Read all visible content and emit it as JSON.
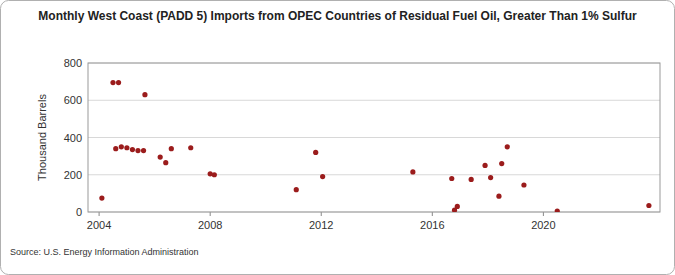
{
  "chart_data": {
    "type": "scatter",
    "title": "Monthly West Coast (PADD 5) Imports from OPEC Countries of Residual Fuel Oil, Greater Than 1% Sulfur",
    "y_label": "Thousand Barrels",
    "source": "Source: U.S. Energy Information Administration",
    "x": [
      2004.1,
      2004.5,
      2004.6,
      2004.7,
      2004.8,
      2005.0,
      2005.2,
      2005.4,
      2005.6,
      2005.65,
      2006.2,
      2006.4,
      2006.6,
      2007.3,
      2008.0,
      2008.15,
      2011.1,
      2011.8,
      2012.05,
      2015.3,
      2016.7,
      2016.8,
      2016.9,
      2017.4,
      2017.9,
      2018.1,
      2018.4,
      2018.5,
      2018.7,
      2019.3,
      2020.5,
      2023.8
    ],
    "values": [
      75,
      695,
      340,
      695,
      350,
      345,
      335,
      330,
      330,
      630,
      295,
      265,
      340,
      345,
      205,
      200,
      120,
      320,
      190,
      215,
      180,
      10,
      30,
      175,
      250,
      185,
      85,
      260,
      350,
      145,
      5,
      35
    ],
    "color": "#9b1c1c",
    "marker": "circle",
    "xlim": [
      2003.6,
      2024.2
    ],
    "ylim": [
      0,
      800
    ],
    "xticks": [
      2004,
      2008,
      2012,
      2016,
      2020
    ],
    "yticks": [
      0,
      200,
      400,
      600,
      800
    ],
    "grid": true
  }
}
